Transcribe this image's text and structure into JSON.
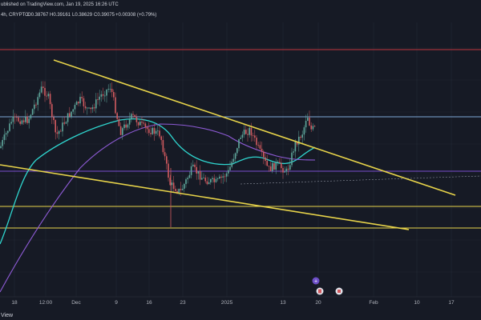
{
  "header": {
    "published": "ublished on TradingView.com, Jan 19, 2025 16:26 UTC",
    "symbol_line": "4h, CRYPTO",
    "open": "O0.38767",
    "high": "H0.39161",
    "low": "L0.38629",
    "close": "C0.39075",
    "change": "+0.00308 (+0.79%)"
  },
  "footer": {
    "brand": "View"
  },
  "colors": {
    "background": "#161a25",
    "grid": "#222735",
    "up_candle": "#5fa79c",
    "down_candle": "#d25a5f",
    "trendline": "#e8d44a",
    "ma_fast": "#2fd6cf",
    "ma_slow": "#8e5bd6",
    "level_red": "#c2353f",
    "level_blue": "#7ea8d8",
    "level_purple": "#7a4fd0",
    "level_yellow": "#e8d44a"
  },
  "chart_data": {
    "type": "candlestick",
    "interval": "4h",
    "x_ticks": [
      "18",
      "12:00",
      "Dec",
      "9",
      "16",
      "23",
      "2025",
      "13",
      "20",
      "Feb",
      "10",
      "17"
    ],
    "horizontal_levels": [
      {
        "name": "red resistance",
        "color": "#c2353f"
      },
      {
        "name": "blue resistance",
        "color": "#7ea8d8"
      },
      {
        "name": "purple support",
        "color": "#7a4fd0"
      },
      {
        "name": "yellow support upper",
        "color": "#e8d44a"
      },
      {
        "name": "yellow support lower",
        "color": "#e8d44a"
      }
    ],
    "trendlines": [
      {
        "name": "descending resistance",
        "color": "#e8d44a"
      },
      {
        "name": "descending support",
        "color": "#e8d44a"
      }
    ],
    "moving_averages": [
      {
        "name": "fast MA",
        "color": "#2fd6cf"
      },
      {
        "name": "slow MA",
        "color": "#8e5bd6"
      }
    ],
    "last_price": "0.39075",
    "grid": true
  }
}
